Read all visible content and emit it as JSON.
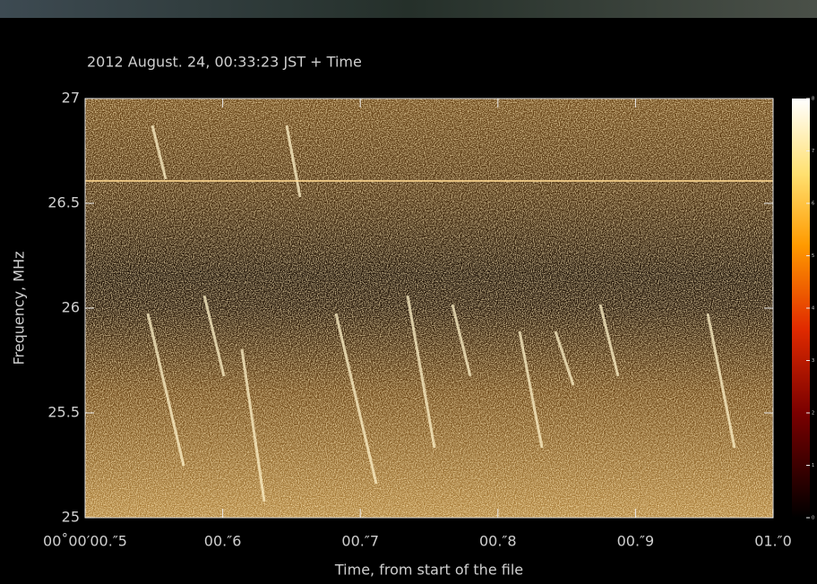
{
  "chart_data": {
    "type": "heatmap",
    "title": "2012 August. 24, 00:33:23 JST + Time",
    "x_label": "Time, from start of the file",
    "y_label": "Frequency, MHz",
    "xlim": [
      0.5,
      1.0
    ],
    "xticks": [
      {
        "value": 0.5,
        "label": "00˚00′00.″5"
      },
      {
        "value": 0.6,
        "label": "00.″6"
      },
      {
        "value": 0.7,
        "label": "00.″7"
      },
      {
        "value": 0.8,
        "label": "00.″8"
      },
      {
        "value": 0.9,
        "label": "00.″9"
      },
      {
        "value": 1.0,
        "label": "01.″0"
      }
    ],
    "ylim": [
      25,
      27
    ],
    "yticks": [
      25,
      25.5,
      26,
      26.5,
      27
    ],
    "colorbar": {
      "clim": [
        0,
        8
      ],
      "ticks": [
        0,
        1,
        2,
        3,
        4,
        5,
        6,
        7,
        8
      ]
    }
  }
}
